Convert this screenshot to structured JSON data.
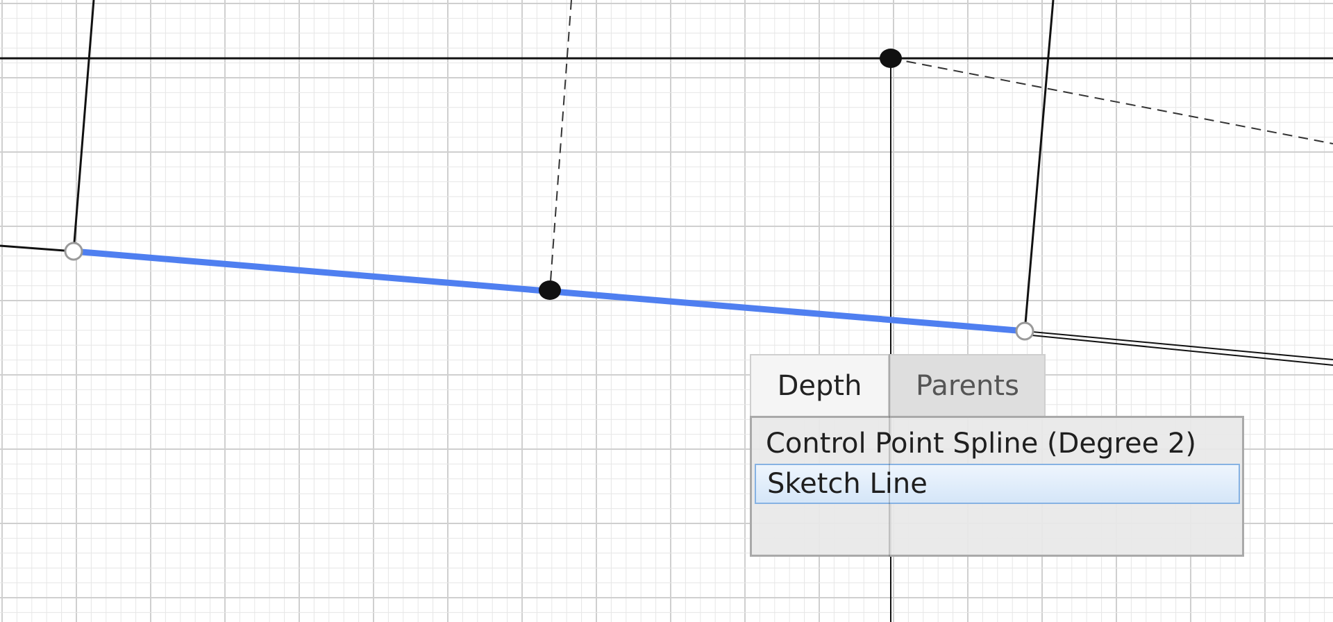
{
  "popup": {
    "tabs": [
      {
        "label": "Depth",
        "selected": true
      },
      {
        "label": "Parents",
        "selected": false
      }
    ],
    "items": [
      {
        "label": "Control Point Spline (Degree 2)",
        "selected": false
      },
      {
        "label": "Sketch Line",
        "selected": true
      }
    ]
  },
  "colors": {
    "selected_line": "#4f7ff0",
    "geometry": "#111111",
    "grid_minor": "#e6e6e6",
    "grid_major": "#cfcfcf",
    "selection_highlight": "#d5e6f8"
  }
}
